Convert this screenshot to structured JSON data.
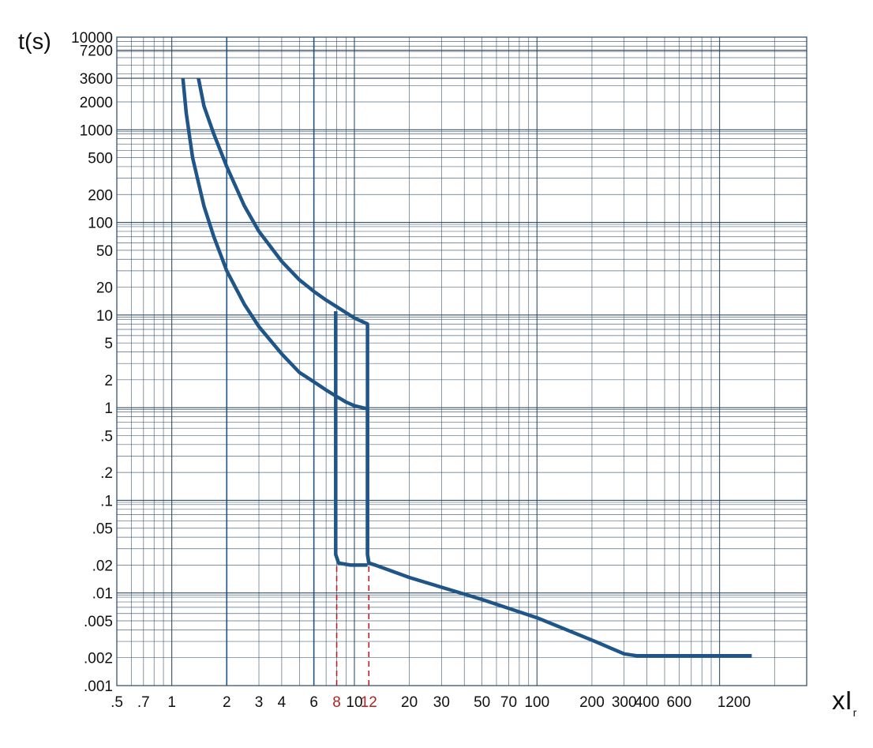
{
  "chart_data": {
    "type": "line",
    "title": "",
    "xlabel": "xI",
    "xlabel_subscript": "r",
    "ylabel": "t(s)",
    "x_scale": "log",
    "y_scale": "log",
    "xlim": [
      0.5,
      3000
    ],
    "ylim": [
      0.001,
      10000
    ],
    "grid": true,
    "legend": "none",
    "x_ticks": [
      {
        "value": 0.5,
        "label": ".5"
      },
      {
        "value": 0.7,
        "label": ".7"
      },
      {
        "value": 1,
        "label": "1"
      },
      {
        "value": 2,
        "label": "2"
      },
      {
        "value": 3,
        "label": "3"
      },
      {
        "value": 4,
        "label": "4"
      },
      {
        "value": 6,
        "label": "6"
      },
      {
        "value": 8,
        "label": "8",
        "highlight": true
      },
      {
        "value": 10,
        "label": "10"
      },
      {
        "value": 12,
        "label": "12",
        "highlight": true
      },
      {
        "value": 20,
        "label": "20"
      },
      {
        "value": 30,
        "label": "30"
      },
      {
        "value": 50,
        "label": "50"
      },
      {
        "value": 70,
        "label": "70"
      },
      {
        "value": 100,
        "label": "100"
      },
      {
        "value": 200,
        "label": "200"
      },
      {
        "value": 300,
        "label": "300"
      },
      {
        "value": 400,
        "label": "400"
      },
      {
        "value": 600,
        "label": "600"
      },
      {
        "value": 1200,
        "label": "1200"
      }
    ],
    "y_ticks": [
      {
        "value": 10000,
        "label": "10000"
      },
      {
        "value": 7200,
        "label": "7200"
      },
      {
        "value": 3600,
        "label": "3600"
      },
      {
        "value": 2000,
        "label": "2000"
      },
      {
        "value": 1000,
        "label": "1000"
      },
      {
        "value": 500,
        "label": "500"
      },
      {
        "value": 200,
        "label": "200"
      },
      {
        "value": 100,
        "label": "100"
      },
      {
        "value": 50,
        "label": "50"
      },
      {
        "value": 20,
        "label": "20"
      },
      {
        "value": 10,
        "label": "10"
      },
      {
        "value": 5,
        "label": "5"
      },
      {
        "value": 2,
        "label": "2"
      },
      {
        "value": 1,
        "label": "1"
      },
      {
        "value": 0.5,
        "label": ".5"
      },
      {
        "value": 0.2,
        "label": ".2"
      },
      {
        "value": 0.1,
        "label": ".1"
      },
      {
        "value": 0.05,
        "label": ".05"
      },
      {
        "value": 0.02,
        "label": ".02"
      },
      {
        "value": 0.01,
        "label": ".01"
      },
      {
        "value": 0.005,
        "label": ".005"
      },
      {
        "value": 0.002,
        "label": ".002"
      },
      {
        "value": 0.001,
        "label": ".001"
      }
    ],
    "series": [
      {
        "points": [
          [
            1.15,
            3600
          ],
          [
            1.2,
            1500
          ],
          [
            1.3,
            500
          ],
          [
            1.5,
            150
          ],
          [
            1.7,
            70
          ],
          [
            2.0,
            30
          ],
          [
            2.5,
            13
          ],
          [
            3.0,
            7.5
          ],
          [
            4.0,
            3.8
          ],
          [
            5.0,
            2.4
          ],
          [
            6.0,
            1.9
          ],
          [
            7.0,
            1.55
          ],
          [
            8.0,
            1.32
          ],
          [
            9.0,
            1.15
          ],
          [
            10.0,
            1.05
          ],
          [
            11.8,
            0.97
          ],
          [
            11.8,
            0.026
          ],
          [
            12.0,
            0.021
          ],
          [
            13.0,
            0.02
          ],
          [
            20.0,
            0.0147
          ],
          [
            50.0,
            0.0085
          ],
          [
            100.0,
            0.0054
          ],
          [
            200.0,
            0.0031
          ],
          [
            300.0,
            0.0022
          ],
          [
            350.0,
            0.0021
          ],
          [
            1500.0,
            0.0021
          ]
        ]
      },
      {
        "points": [
          [
            1.4,
            3600
          ],
          [
            1.5,
            1800
          ],
          [
            1.7,
            900
          ],
          [
            2.0,
            400
          ],
          [
            2.5,
            150
          ],
          [
            3.0,
            80
          ],
          [
            4.0,
            38
          ],
          [
            5.0,
            24
          ],
          [
            6.0,
            18
          ],
          [
            7.0,
            14.5
          ],
          [
            8.0,
            12.3
          ],
          [
            9.0,
            10.6
          ],
          [
            10.0,
            9.3
          ],
          [
            11.8,
            8.0
          ],
          [
            11.8,
            0.026
          ],
          [
            12.0,
            0.021
          ],
          [
            13.0,
            0.02
          ]
        ]
      },
      {
        "points": [
          [
            7.9,
            11
          ],
          [
            7.9,
            0.026
          ],
          [
            8.2,
            0.021
          ],
          [
            9.5,
            0.02
          ],
          [
            11.8,
            0.02
          ]
        ]
      }
    ],
    "reference_lines": [
      {
        "x": 8,
        "y_from": 0.001,
        "y_to": 0.02,
        "style": "dashed"
      },
      {
        "x": 12,
        "y_from": 0.001,
        "y_to": 0.02,
        "style": "dashed"
      }
    ],
    "colors": {
      "curve": "#1F5587",
      "grid": "#2A4560",
      "reference": "#B22222",
      "highlight_label": "#B22222",
      "text": "#111111"
    }
  }
}
